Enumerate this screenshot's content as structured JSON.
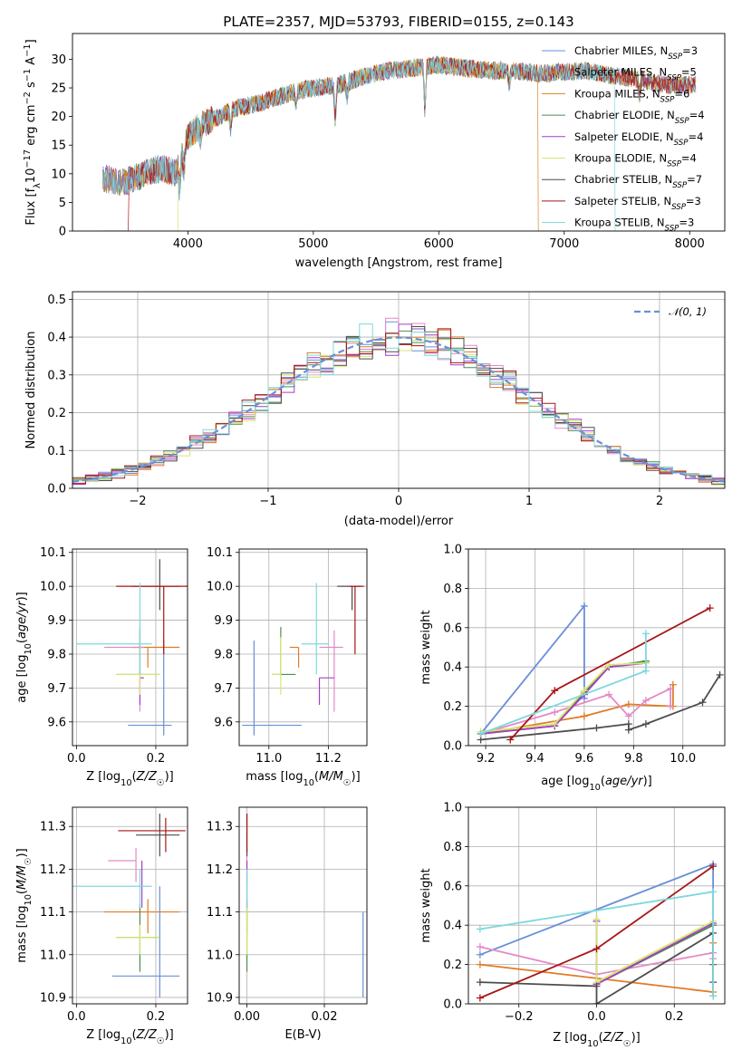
{
  "figure": {
    "title": "PLATE=2357, MJD=53793, FIBERID=0155, z=0.143"
  },
  "colors": {
    "blue": "#6a8fd8",
    "orange": "#e07b25",
    "pink": "#e38ac6",
    "green": "#4f8a4f",
    "purple": "#a43fc4",
    "yellow": "#d6e66f",
    "gray": "#4d4d4d",
    "red": "#a81515",
    "cyan": "#7dd8dd",
    "grid": "#b0b0b0"
  },
  "chart_data": [
    {
      "id": "spectrum",
      "type": "line",
      "xlabel": "wavelength [Angstrom, rest frame]",
      "ylabel": "Flux [f_λ10^-17 erg cm^-2 s^-1 A^-1]",
      "xlim": [
        3080,
        8280
      ],
      "ylim": [
        0,
        34.5
      ],
      "xticks": [
        4000,
        5000,
        6000,
        7000,
        8000
      ],
      "yticks": [
        0,
        5,
        10,
        15,
        20,
        25,
        30
      ],
      "grid": false,
      "legend_position": "top-right",
      "continuum": {
        "wavelength": [
          3300,
          3500,
          3700,
          3800,
          3900,
          4000,
          4100,
          4200,
          4400,
          4600,
          4800,
          5000,
          5200,
          5400,
          5600,
          5800,
          6000,
          6200,
          6400,
          6600,
          6800,
          7000,
          7200,
          7400,
          7600,
          7800,
          8050
        ],
        "flux": [
          9.2,
          8.5,
          10.5,
          11.0,
          10.0,
          16.5,
          18.5,
          19.5,
          21.5,
          22.5,
          24.0,
          25.0,
          25.5,
          27.0,
          28.0,
          28.5,
          29.0,
          28.5,
          28.0,
          28.0,
          27.5,
          27.8,
          28.0,
          27.0,
          26.5,
          25.5,
          25.5
        ]
      },
      "series": [
        {
          "name": "Chabrier MILES, N_SSP=3",
          "color": "#6a8fd8"
        },
        {
          "name": "Salpeter MILES, N_SSP=5",
          "color": "#e07b25"
        },
        {
          "name": "Kroupa MILES, N_SSP=6",
          "color": "#d4851a"
        },
        {
          "name": "Chabrier ELODIE, N_SSP=4",
          "color": "#4f8a4f"
        },
        {
          "name": "Salpeter ELODIE, N_SSP=4",
          "color": "#a43fc4"
        },
        {
          "name": "Kroupa ELODIE, N_SSP=4",
          "color": "#d6e66f"
        },
        {
          "name": "Chabrier STELIB, N_SSP=7",
          "color": "#4d4d4d"
        },
        {
          "name": "Salpeter STELIB, N_SSP=3",
          "color": "#a81515"
        },
        {
          "name": "Kroupa STELIB, N_SSP=3",
          "color": "#7dd8dd"
        }
      ]
    },
    {
      "id": "residuals",
      "type": "line",
      "xlabel": "(data-model)/error",
      "ylabel": "Normed distribution",
      "xlim": [
        -2.5,
        2.5
      ],
      "ylim": [
        0,
        0.52
      ],
      "xticks": [
        -2,
        -1,
        0,
        1,
        2
      ],
      "yticks": [
        0.0,
        0.1,
        0.2,
        0.3,
        0.4,
        0.5
      ],
      "grid": true,
      "legend": {
        "label": "𝒩(0, 1)",
        "position": "top-right"
      },
      "bin_width": 0.1,
      "normal_curve": {
        "mean": 0,
        "sigma": 1
      }
    },
    {
      "id": "age-vs-Z",
      "type": "scatter",
      "xlabel": "Z [log10(Z/Z☉)]",
      "ylabel": "age [log10(age/yr)]",
      "xlim": [
        -0.01,
        0.28
      ],
      "ylim": [
        9.53,
        10.11
      ],
      "xticks": [
        0.0,
        0.2
      ],
      "yticks": [
        9.6,
        9.7,
        9.8,
        9.9,
        10.0,
        10.1
      ],
      "grid": true,
      "points": [
        {
          "x": 0.22,
          "y": 9.59,
          "xerr": [
            0.09,
            0.02
          ],
          "yerr": [
            0.03,
            0.25
          ],
          "color": "#6a8fd8"
        },
        {
          "x": 0.18,
          "y": 9.82,
          "xerr": [
            0.04,
            0.08
          ],
          "yerr": [
            0.06,
            0.0
          ],
          "color": "#e07b25"
        },
        {
          "x": 0.16,
          "y": 9.82,
          "xerr": [
            0.09,
            0.01
          ],
          "yerr": [
            0.19,
            0.05
          ],
          "color": "#e38ac6"
        },
        {
          "x": 0.16,
          "y": 9.74,
          "xerr": [
            0.06,
            0.05
          ],
          "yerr": [
            0.0,
            0.14
          ],
          "color": "#4f8a4f"
        },
        {
          "x": 0.16,
          "y": 9.73,
          "xerr": [
            0.0,
            0.01
          ],
          "yerr": [
            0.08,
            0.0
          ],
          "color": "#a43fc4"
        },
        {
          "x": 0.16,
          "y": 9.74,
          "xerr": [
            0.06,
            0.05
          ],
          "yerr": [
            0.06,
            0.11
          ],
          "color": "#d6e66f"
        },
        {
          "x": 0.21,
          "y": 10.0,
          "xerr": [
            0.07,
            0.05
          ],
          "yerr": [
            0.07,
            0.08
          ],
          "color": "#4d4d4d"
        },
        {
          "x": 0.22,
          "y": 10.0,
          "xerr": [
            0.12,
            0.08
          ],
          "yerr": [
            0.2,
            0.0
          ],
          "color": "#a81515"
        },
        {
          "x": 0.16,
          "y": 9.83,
          "xerr": [
            0.16,
            0.03
          ],
          "yerr": [
            0.09,
            0.18
          ],
          "color": "#7dd8dd"
        }
      ]
    },
    {
      "id": "age-vs-mass",
      "type": "scatter",
      "xlabel": "mass [log10(M/M☉)]",
      "ylabel": "",
      "xlim": [
        10.9,
        11.33
      ],
      "ylim": [
        9.53,
        10.11
      ],
      "xticks": [
        11.0,
        11.2
      ],
      "yticks": [
        9.6,
        9.7,
        9.8,
        9.9,
        10.0,
        10.1
      ],
      "grid": true,
      "points": [
        {
          "x": 10.95,
          "y": 9.59,
          "xerr": [
            0.04,
            0.16
          ],
          "yerr": [
            0.03,
            0.25
          ],
          "color": "#6a8fd8"
        },
        {
          "x": 11.1,
          "y": 9.82,
          "xerr": [
            0.03,
            0.0
          ],
          "yerr": [
            0.06,
            0.0
          ],
          "color": "#e07b25"
        },
        {
          "x": 11.22,
          "y": 9.82,
          "xerr": [
            0.05,
            0.03
          ],
          "yerr": [
            0.19,
            0.05
          ],
          "color": "#e38ac6"
        },
        {
          "x": 11.04,
          "y": 9.74,
          "xerr": [
            0.03,
            0.05
          ],
          "yerr": [
            0.0,
            0.14
          ],
          "color": "#4f8a4f"
        },
        {
          "x": 11.17,
          "y": 9.73,
          "xerr": [
            0.0,
            0.05
          ],
          "yerr": [
            0.08,
            0.0
          ],
          "color": "#a43fc4"
        },
        {
          "x": 11.04,
          "y": 9.74,
          "xerr": [
            0.03,
            0.0
          ],
          "yerr": [
            0.06,
            0.11
          ],
          "color": "#d6e66f"
        },
        {
          "x": 11.28,
          "y": 10.0,
          "xerr": [
            0.05,
            0.03
          ],
          "yerr": [
            0.07,
            0.0
          ],
          "color": "#4d4d4d"
        },
        {
          "x": 11.29,
          "y": 10.0,
          "xerr": [
            0.02,
            0.03
          ],
          "yerr": [
            0.2,
            0.0
          ],
          "color": "#a81515"
        },
        {
          "x": 11.16,
          "y": 9.83,
          "xerr": [
            0.05,
            0.04
          ],
          "yerr": [
            0.09,
            0.18
          ],
          "color": "#7dd8dd"
        }
      ]
    },
    {
      "id": "mass-weight-vs-age",
      "type": "line",
      "xlabel": "age [log10(age/yr)]",
      "ylabel": "mass weight",
      "xlim": [
        9.13,
        10.17
      ],
      "ylim": [
        0,
        1
      ],
      "xticks": [
        9.2,
        9.4,
        9.6,
        9.8,
        10.0
      ],
      "yticks": [
        0.0,
        0.2,
        0.4,
        0.6,
        0.8,
        1.0
      ],
      "grid": true,
      "series": [
        {
          "color": "#6a8fd8",
          "x": [
            9.18,
            9.6,
            9.6
          ],
          "y": [
            0.06,
            0.71,
            0.24
          ]
        },
        {
          "color": "#e07b25",
          "x": [
            9.18,
            9.6,
            9.78,
            9.96,
            9.96
          ],
          "y": [
            0.06,
            0.15,
            0.21,
            0.2,
            0.31
          ]
        },
        {
          "color": "#e38ac6",
          "x": [
            9.18,
            9.48,
            9.7,
            9.78,
            9.85,
            9.95,
            9.95
          ],
          "y": [
            0.06,
            0.17,
            0.26,
            0.15,
            0.23,
            0.29,
            0.2
          ]
        },
        {
          "color": "#4f8a4f",
          "x": [
            9.18,
            9.48,
            9.6,
            9.7,
            9.85
          ],
          "y": [
            0.06,
            0.1,
            0.27,
            0.4,
            0.43
          ]
        },
        {
          "color": "#a43fc4",
          "x": [
            9.18,
            9.48,
            9.6,
            9.7,
            9.85
          ],
          "y": [
            0.06,
            0.1,
            0.26,
            0.4,
            0.42
          ]
        },
        {
          "color": "#d6e66f",
          "x": [
            9.18,
            9.48,
            9.6,
            9.7,
            9.85
          ],
          "y": [
            0.07,
            0.11,
            0.28,
            0.41,
            0.42
          ]
        },
        {
          "color": "#4d4d4d",
          "x": [
            9.18,
            9.65,
            9.78,
            9.78,
            9.85,
            10.08,
            10.15
          ],
          "y": [
            0.03,
            0.09,
            0.11,
            0.08,
            0.11,
            0.22,
            0.36
          ]
        },
        {
          "color": "#a81515",
          "x": [
            9.3,
            9.48,
            10.11
          ],
          "y": [
            0.03,
            0.28,
            0.7
          ]
        },
        {
          "color": "#7dd8dd",
          "x": [
            9.18,
            9.85,
            9.85
          ],
          "y": [
            0.06,
            0.38,
            0.57
          ]
        }
      ]
    },
    {
      "id": "mass-vs-Z",
      "type": "scatter",
      "xlabel": "Z [log10(Z/Z☉)]",
      "ylabel": "mass [log10(M/M☉)]",
      "xlim": [
        -0.01,
        0.28
      ],
      "ylim": [
        10.885,
        11.345
      ],
      "xticks": [
        0.0,
        0.2
      ],
      "yticks": [
        10.9,
        11.0,
        11.1,
        11.2,
        11.3
      ],
      "grid": true,
      "points": [
        {
          "x": 0.21,
          "y": 10.95,
          "xerr": [
            0.12,
            0.05
          ],
          "yerr": [
            0.05,
            0.21
          ],
          "color": "#6a8fd8"
        },
        {
          "x": 0.18,
          "y": 11.1,
          "xerr": [
            0.11,
            0.08
          ],
          "yerr": [
            0.05,
            0.03
          ],
          "color": "#e07b25"
        },
        {
          "x": 0.15,
          "y": 11.22,
          "xerr": [
            0.07,
            0.0
          ],
          "yerr": [
            0.05,
            0.03
          ],
          "color": "#e38ac6"
        },
        {
          "x": 0.16,
          "y": 11.04,
          "xerr": [
            0.06,
            0.05
          ],
          "yerr": [
            0.08,
            0.08
          ],
          "color": "#4f8a4f"
        },
        {
          "x": 0.165,
          "y": 11.17,
          "xerr": [
            0.0,
            0.0
          ],
          "yerr": [
            0.06,
            0.05
          ],
          "color": "#a43fc4"
        },
        {
          "x": 0.16,
          "y": 11.04,
          "xerr": [
            0.06,
            0.05
          ],
          "yerr": [
            0.04,
            0.03
          ],
          "color": "#d6e66f"
        },
        {
          "x": 0.21,
          "y": 11.28,
          "xerr": [
            0.06,
            0.05
          ],
          "yerr": [
            0.05,
            0.05
          ],
          "color": "#4d4d4d"
        },
        {
          "x": 0.225,
          "y": 11.29,
          "xerr": [
            0.12,
            0.05
          ],
          "yerr": [
            0.05,
            0.03
          ],
          "color": "#a81515"
        },
        {
          "x": 0.16,
          "y": 11.16,
          "xerr": [
            0.18,
            0.03
          ],
          "yerr": [
            0.05,
            0.04
          ],
          "color": "#7dd8dd"
        }
      ]
    },
    {
      "id": "mass-vs-EBV",
      "type": "scatter",
      "xlabel": "E(B-V)",
      "ylabel": "",
      "xlim": [
        -0.002,
        0.031
      ],
      "ylim": [
        10.885,
        11.345
      ],
      "xticks": [
        0.0,
        0.02
      ],
      "yticks": [
        10.9,
        11.0,
        11.1,
        11.2,
        11.3
      ],
      "grid": true,
      "points": [
        {
          "x": 0.03,
          "y": 10.95,
          "xerr": [
            0,
            0
          ],
          "yerr": [
            0.05,
            0.15
          ],
          "color": "#6a8fd8"
        },
        {
          "x": 0.0,
          "y": 11.1,
          "xerr": [
            0,
            0
          ],
          "yerr": [
            0.05,
            0.03
          ],
          "color": "#e07b25"
        },
        {
          "x": 0.0,
          "y": 11.22,
          "xerr": [
            0,
            0
          ],
          "yerr": [
            0.05,
            0.03
          ],
          "color": "#e38ac6"
        },
        {
          "x": 0.0,
          "y": 11.04,
          "xerr": [
            0,
            0
          ],
          "yerr": [
            0.08,
            0.08
          ],
          "color": "#4f8a4f"
        },
        {
          "x": 0.0,
          "y": 11.17,
          "xerr": [
            0,
            0
          ],
          "yerr": [
            0.06,
            0.05
          ],
          "color": "#a43fc4"
        },
        {
          "x": 0.0,
          "y": 11.04,
          "xerr": [
            0,
            0
          ],
          "yerr": [
            0.04,
            0.08
          ],
          "color": "#d6e66f"
        },
        {
          "x": 0.0,
          "y": 11.28,
          "xerr": [
            0,
            0
          ],
          "yerr": [
            0.05,
            0.05
          ],
          "color": "#4d4d4d"
        },
        {
          "x": 0.0,
          "y": 11.29,
          "xerr": [
            0,
            0
          ],
          "yerr": [
            0.05,
            0.04
          ],
          "color": "#a81515"
        },
        {
          "x": 0.0,
          "y": 11.16,
          "xerr": [
            0,
            0
          ],
          "yerr": [
            0.05,
            0.04
          ],
          "color": "#7dd8dd"
        }
      ]
    },
    {
      "id": "mass-weight-vs-Z",
      "type": "line",
      "xlabel": "Z [log10(Z/Z☉)]",
      "ylabel": "mass weight",
      "xlim": [
        -0.33,
        0.33
      ],
      "ylim": [
        0,
        1
      ],
      "xticks": [
        -0.2,
        0.0,
        0.2
      ],
      "yticks": [
        0.0,
        0.2,
        0.4,
        0.6,
        0.8,
        1.0
      ],
      "grid": true,
      "series": [
        {
          "color": "#6a8fd8",
          "x": [
            -0.3,
            0.3,
            0.3
          ],
          "y": [
            0.25,
            0.71,
            0.04
          ]
        },
        {
          "color": "#e07b25",
          "x": [
            -0.3,
            0.3,
            0.3,
            0.3
          ],
          "y": [
            0.2,
            0.06,
            0.2,
            0.31
          ]
        },
        {
          "color": "#e38ac6",
          "x": [
            -0.3,
            0.0,
            0.3,
            0.3
          ],
          "y": [
            0.29,
            0.15,
            0.26,
            0.23
          ]
        },
        {
          "color": "#4f8a4f",
          "x": [
            0.0,
            0.0,
            0.3,
            0.3
          ],
          "y": [
            0.43,
            0.1,
            0.4,
            0.2
          ]
        },
        {
          "color": "#a43fc4",
          "x": [
            0.0,
            0.0,
            0.3
          ],
          "y": [
            0.42,
            0.1,
            0.41
          ]
        },
        {
          "color": "#d6e66f",
          "x": [
            0.0,
            0.0,
            0.3
          ],
          "y": [
            0.43,
            0.11,
            0.42
          ]
        },
        {
          "color": "#4d4d4d",
          "x": [
            -0.3,
            0.0,
            0.0,
            0.3,
            0.3
          ],
          "y": [
            0.11,
            0.09,
            0.0,
            0.36,
            0.11
          ]
        },
        {
          "color": "#a81515",
          "x": [
            -0.3,
            0.0,
            0.3
          ],
          "y": [
            0.03,
            0.28,
            0.7
          ]
        },
        {
          "color": "#7dd8dd",
          "x": [
            -0.3,
            0.3,
            0.3
          ],
          "y": [
            0.38,
            0.57,
            0.04
          ]
        }
      ]
    }
  ]
}
